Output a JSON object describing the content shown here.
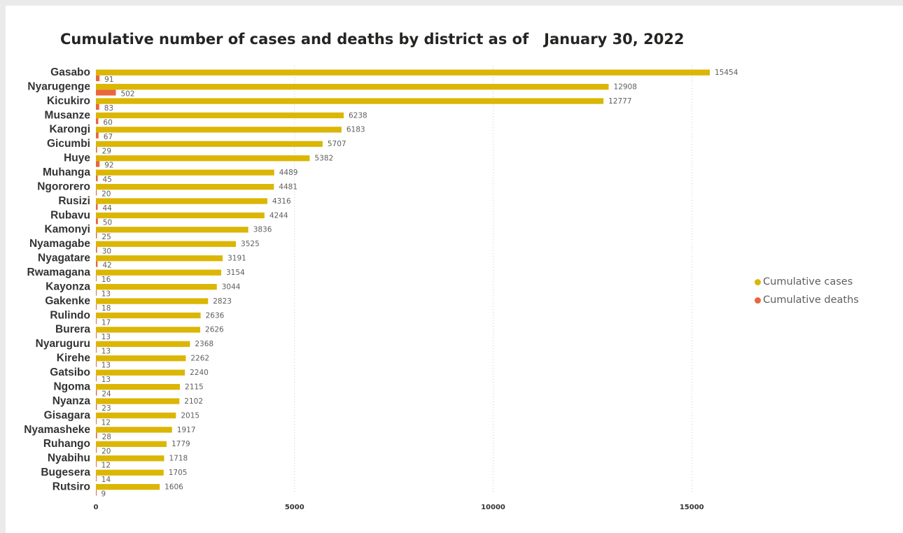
{
  "chart_data": {
    "type": "bar",
    "orientation": "horizontal",
    "title": "Cumulative number of cases and deaths by district as of   January 30, 2022",
    "categories": [
      "Gasabo",
      "Nyarugenge",
      "Kicukiro",
      "Musanze",
      "Karongi",
      "Gicumbi",
      "Huye",
      "Muhanga",
      "Ngororero",
      "Rusizi",
      "Rubavu",
      "Kamonyi",
      "Nyamagabe",
      "Nyagatare",
      "Rwamagana",
      "Kayonza",
      "Gakenke",
      "Rulindo",
      "Burera",
      "Nyaruguru",
      "Kirehe",
      "Gatsibo",
      "Ngoma",
      "Nyanza",
      "Gisagara",
      "Nyamasheke",
      "Ruhango",
      "Nyabihu",
      "Bugesera",
      "Rutsiro"
    ],
    "series": [
      {
        "name": "Cumulative cases",
        "color": "#dbb604",
        "values": [
          15454,
          12908,
          12777,
          6238,
          6183,
          5707,
          5382,
          4489,
          4481,
          4316,
          4244,
          3836,
          3525,
          3191,
          3154,
          3044,
          2823,
          2636,
          2626,
          2368,
          2262,
          2240,
          2115,
          2102,
          2015,
          1917,
          1779,
          1718,
          1705,
          1606
        ]
      },
      {
        "name": "Cumulative deaths",
        "color": "#e8663b",
        "values": [
          91,
          502,
          83,
          60,
          67,
          29,
          92,
          45,
          20,
          44,
          50,
          25,
          30,
          42,
          16,
          13,
          18,
          17,
          13,
          13,
          13,
          13,
          24,
          23,
          12,
          28,
          20,
          12,
          14,
          9
        ]
      }
    ],
    "xticks": [
      "0",
      "5000",
      "10000",
      "15000"
    ],
    "xlim": [
      0,
      17000
    ],
    "grid": true,
    "legend_position": "right"
  }
}
